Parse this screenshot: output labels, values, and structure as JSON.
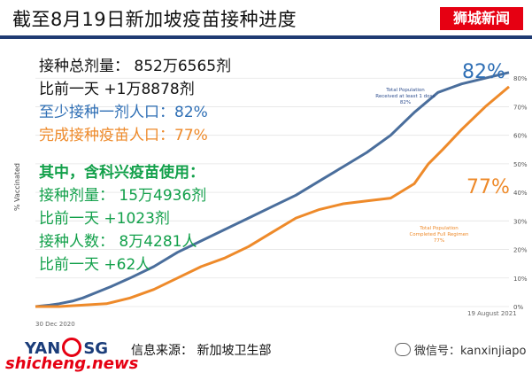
{
  "header": {
    "title": "截至8月19日新加坡疫苗接种进度",
    "brand": "狮城新闻"
  },
  "stats": {
    "total_doses": "接种总剂量：  852万6565剂",
    "total_change": "比前一天 +1万8878剂",
    "one_dose": "至少接种一剂人口：82%",
    "full": "完成接种疫苗人口：77%",
    "sinovac_heading": "其中，含科兴疫苗使用：",
    "sinovac_doses": "接种剂量：  15万4936剂",
    "sinovac_doses_change": "比前一天 +1023剂",
    "sinovac_people": "接种人数：  8万4281人",
    "sinovac_people_change": "比前一天 +62人"
  },
  "chart_data": {
    "type": "line",
    "title": "",
    "ylabel": "% Vaccinated",
    "xlabel": "",
    "x_tick_labels": [
      "30 Dec 2020",
      "19 August 2021"
    ],
    "ylim": [
      0,
      90
    ],
    "yticks": [
      "0%",
      "10%",
      "20%",
      "30%",
      "40%",
      "50%",
      "60%",
      "70%",
      "80%"
    ],
    "big_labels": {
      "one_dose": "82%",
      "full": "77%"
    },
    "annotations": {
      "one_dose": [
        "Total Population",
        "Received at least 1 dose",
        "82%"
      ],
      "full": [
        "Total Population",
        "Completed Full Regimen",
        "77%"
      ]
    },
    "series": [
      {
        "name": "Total Population Received at least 1 dose",
        "color": "#4a6e9c",
        "x": [
          0,
          0.03,
          0.05,
          0.08,
          0.1,
          0.13,
          0.16,
          0.2,
          0.25,
          0.3,
          0.35,
          0.4,
          0.45,
          0.5,
          0.55,
          0.6,
          0.65,
          0.7,
          0.75,
          0.8,
          0.85,
          0.9,
          0.95,
          1.0
        ],
        "y": [
          0,
          0.5,
          1,
          2,
          3,
          5,
          7,
          10,
          14,
          19,
          23,
          27,
          31,
          35,
          39,
          44,
          49,
          54,
          60,
          68,
          75,
          78,
          80,
          82
        ]
      },
      {
        "name": "Total Population Completed Full Regimen",
        "color": "#ee8a2a",
        "x": [
          0,
          0.05,
          0.1,
          0.15,
          0.2,
          0.25,
          0.3,
          0.35,
          0.4,
          0.45,
          0.5,
          0.55,
          0.6,
          0.65,
          0.7,
          0.75,
          0.8,
          0.83,
          0.86,
          0.9,
          0.95,
          1.0
        ],
        "y": [
          0,
          0,
          0.5,
          1,
          3,
          6,
          10,
          14,
          17,
          21,
          26,
          31,
          34,
          36,
          37,
          38,
          43,
          50,
          55,
          62,
          70,
          77
        ]
      }
    ]
  },
  "footer": {
    "logo_left": "YAN",
    "logo_right": "SG",
    "source": "信息来源：  新加坡卫生部",
    "wechat": "微信号：kanxinjiapo",
    "site": "shicheng.news"
  }
}
